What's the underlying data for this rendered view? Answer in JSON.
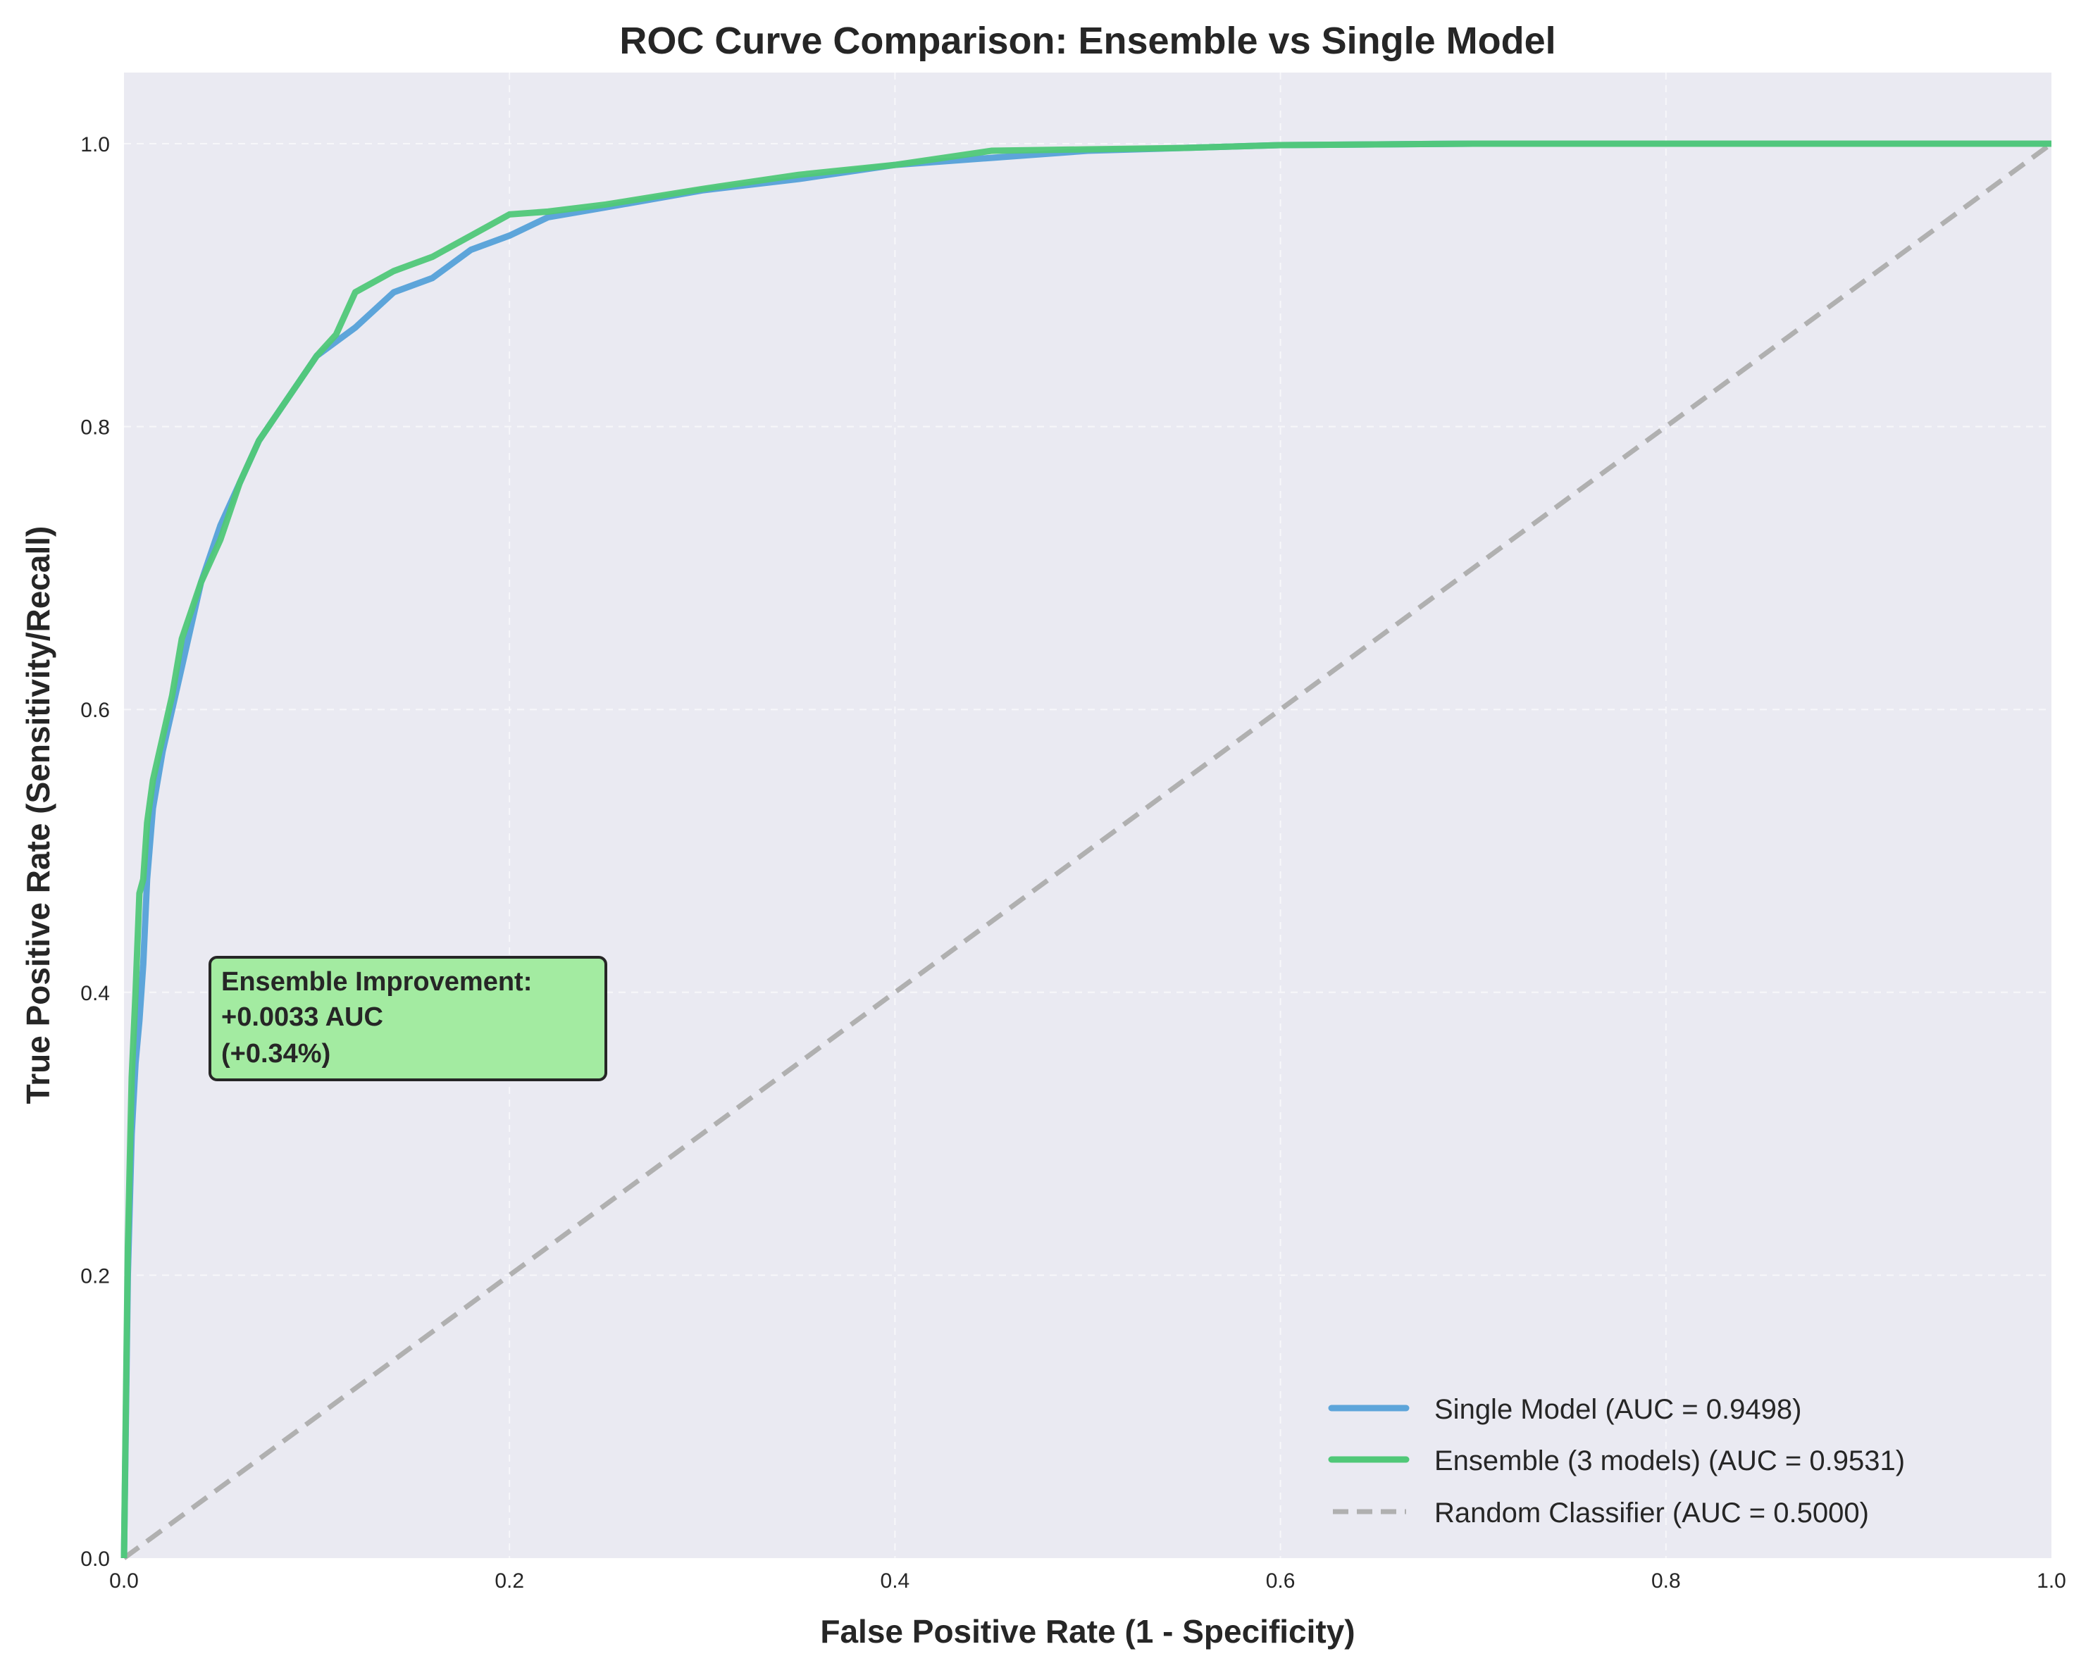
{
  "chart_data": {
    "type": "line",
    "title": "ROC Curve Comparison: Ensemble vs Single Model",
    "xlabel": "False Positive Rate (1 - Specificity)",
    "ylabel": "True Positive Rate (Sensitivity/Recall)",
    "xlim": [
      0.0,
      1.0
    ],
    "ylim": [
      0.0,
      1.05
    ],
    "xticks": [
      "0.0",
      "0.2",
      "0.4",
      "0.6",
      "0.8",
      "1.0"
    ],
    "yticks": [
      "0.0",
      "0.2",
      "0.4",
      "0.6",
      "0.8",
      "1.0"
    ],
    "grid": true,
    "legend_position": "lower right",
    "series": [
      {
        "name": "Single Model (AUC = 0.9498)",
        "color": "#5DA5DA",
        "style": "solid",
        "x": [
          0.0,
          0.002,
          0.004,
          0.006,
          0.008,
          0.01,
          0.012,
          0.015,
          0.02,
          0.025,
          0.03,
          0.035,
          0.04,
          0.05,
          0.06,
          0.07,
          0.08,
          0.09,
          0.1,
          0.12,
          0.14,
          0.16,
          0.18,
          0.2,
          0.22,
          0.25,
          0.3,
          0.35,
          0.4,
          0.45,
          0.5,
          0.55,
          0.6,
          0.7,
          0.72,
          0.8,
          1.0
        ],
        "y": [
          0.0,
          0.2,
          0.3,
          0.35,
          0.38,
          0.42,
          0.48,
          0.53,
          0.57,
          0.6,
          0.63,
          0.66,
          0.69,
          0.73,
          0.76,
          0.79,
          0.81,
          0.83,
          0.85,
          0.87,
          0.895,
          0.905,
          0.925,
          0.935,
          0.948,
          0.955,
          0.967,
          0.975,
          0.985,
          0.99,
          0.995,
          0.997,
          0.999,
          1.0,
          1.0,
          1.0,
          1.0
        ]
      },
      {
        "name": "Ensemble (3 models) (AUC = 0.9531)",
        "color": "#50C878",
        "style": "solid",
        "x": [
          0.0,
          0.002,
          0.004,
          0.006,
          0.008,
          0.01,
          0.012,
          0.015,
          0.02,
          0.025,
          0.03,
          0.035,
          0.04,
          0.05,
          0.06,
          0.07,
          0.08,
          0.09,
          0.1,
          0.11,
          0.12,
          0.14,
          0.16,
          0.18,
          0.2,
          0.22,
          0.25,
          0.3,
          0.35,
          0.4,
          0.45,
          0.5,
          0.55,
          0.6,
          0.7,
          0.8,
          1.0
        ],
        "y": [
          0.0,
          0.22,
          0.34,
          0.4,
          0.47,
          0.48,
          0.52,
          0.55,
          0.58,
          0.61,
          0.65,
          0.67,
          0.69,
          0.72,
          0.76,
          0.79,
          0.81,
          0.83,
          0.85,
          0.865,
          0.895,
          0.91,
          0.92,
          0.935,
          0.95,
          0.952,
          0.957,
          0.968,
          0.978,
          0.985,
          0.995,
          0.996,
          0.997,
          0.999,
          1.0,
          1.0,
          1.0
        ]
      },
      {
        "name": "Random Classifier (AUC = 0.5000)",
        "color": "#B0B0B0",
        "style": "dashed",
        "x": [
          0.0,
          1.0
        ],
        "y": [
          0.0,
          1.0
        ]
      }
    ],
    "annotations": [
      {
        "text": [
          "Ensemble Improvement:",
          "+0.0033 AUC",
          "(+0.34%)"
        ],
        "x": 0.05,
        "y": 0.4,
        "background": "#A3EBA1"
      }
    ]
  },
  "title": "ROC Curve Comparison: Ensemble vs Single Model",
  "xlabel": "False Positive Rate (1 - Specificity)",
  "ylabel": "True Positive Rate (Sensitivity/Recall)",
  "xticks": [
    "0.0",
    "0.2",
    "0.4",
    "0.6",
    "0.8",
    "1.0"
  ],
  "yticks": [
    "0.0",
    "0.2",
    "0.4",
    "0.6",
    "0.8",
    "1.0"
  ],
  "legend": {
    "items": [
      {
        "label": "Single Model (AUC = 0.9498)",
        "color": "#5DA5DA"
      },
      {
        "label": "Ensemble (3 models) (AUC = 0.9531)",
        "color": "#50C878"
      },
      {
        "label": "Random Classifier (AUC = 0.5000)",
        "color": "#B0B0B0"
      }
    ]
  },
  "annotation": {
    "line1": "Ensemble Improvement:",
    "line2": "+0.0033 AUC",
    "line3": "(+0.34%)"
  },
  "colors": {
    "plot_bg": "#EAEAF2",
    "grid": "#F5F5F8",
    "single": "#5DA5DA",
    "ensemble": "#50C878",
    "random": "#B0B0B0",
    "annotation_bg": "#A3EBA1"
  }
}
